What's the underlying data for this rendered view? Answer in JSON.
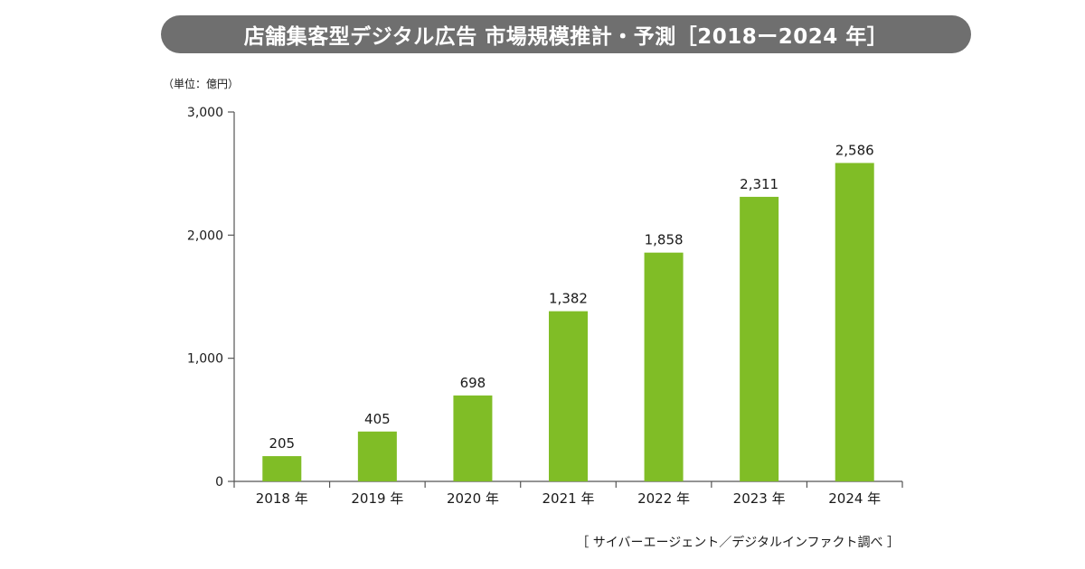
{
  "chart_data": {
    "type": "bar",
    "title": "店舗集客型デジタル広告 市場規模推計・予測［2018ー2024 年］",
    "unit_label": "（単位：億円）",
    "source": "［ サイバーエージェント／デジタルインファクト調べ ］",
    "categories": [
      "2018 年",
      "2019 年",
      "2020 年",
      "2021 年",
      "2022 年",
      "2023 年",
      "2024 年"
    ],
    "values": [
      205,
      405,
      698,
      1382,
      1858,
      2311,
      2586
    ],
    "value_labels": [
      "205",
      "405",
      "698",
      "1,382",
      "1,858",
      "2,311",
      "2,586"
    ],
    "yticks": [
      0,
      1000,
      2000,
      3000
    ],
    "ytick_labels": [
      "0",
      "1,000",
      "2,000",
      "3,000"
    ],
    "ylim": [
      0,
      3000
    ],
    "xlabel": "",
    "ylabel": "",
    "grid": false,
    "legend": "none",
    "colors": {
      "bar": "#80bd26",
      "axis": "#555555",
      "title_bg": "#6f6f6f"
    }
  }
}
